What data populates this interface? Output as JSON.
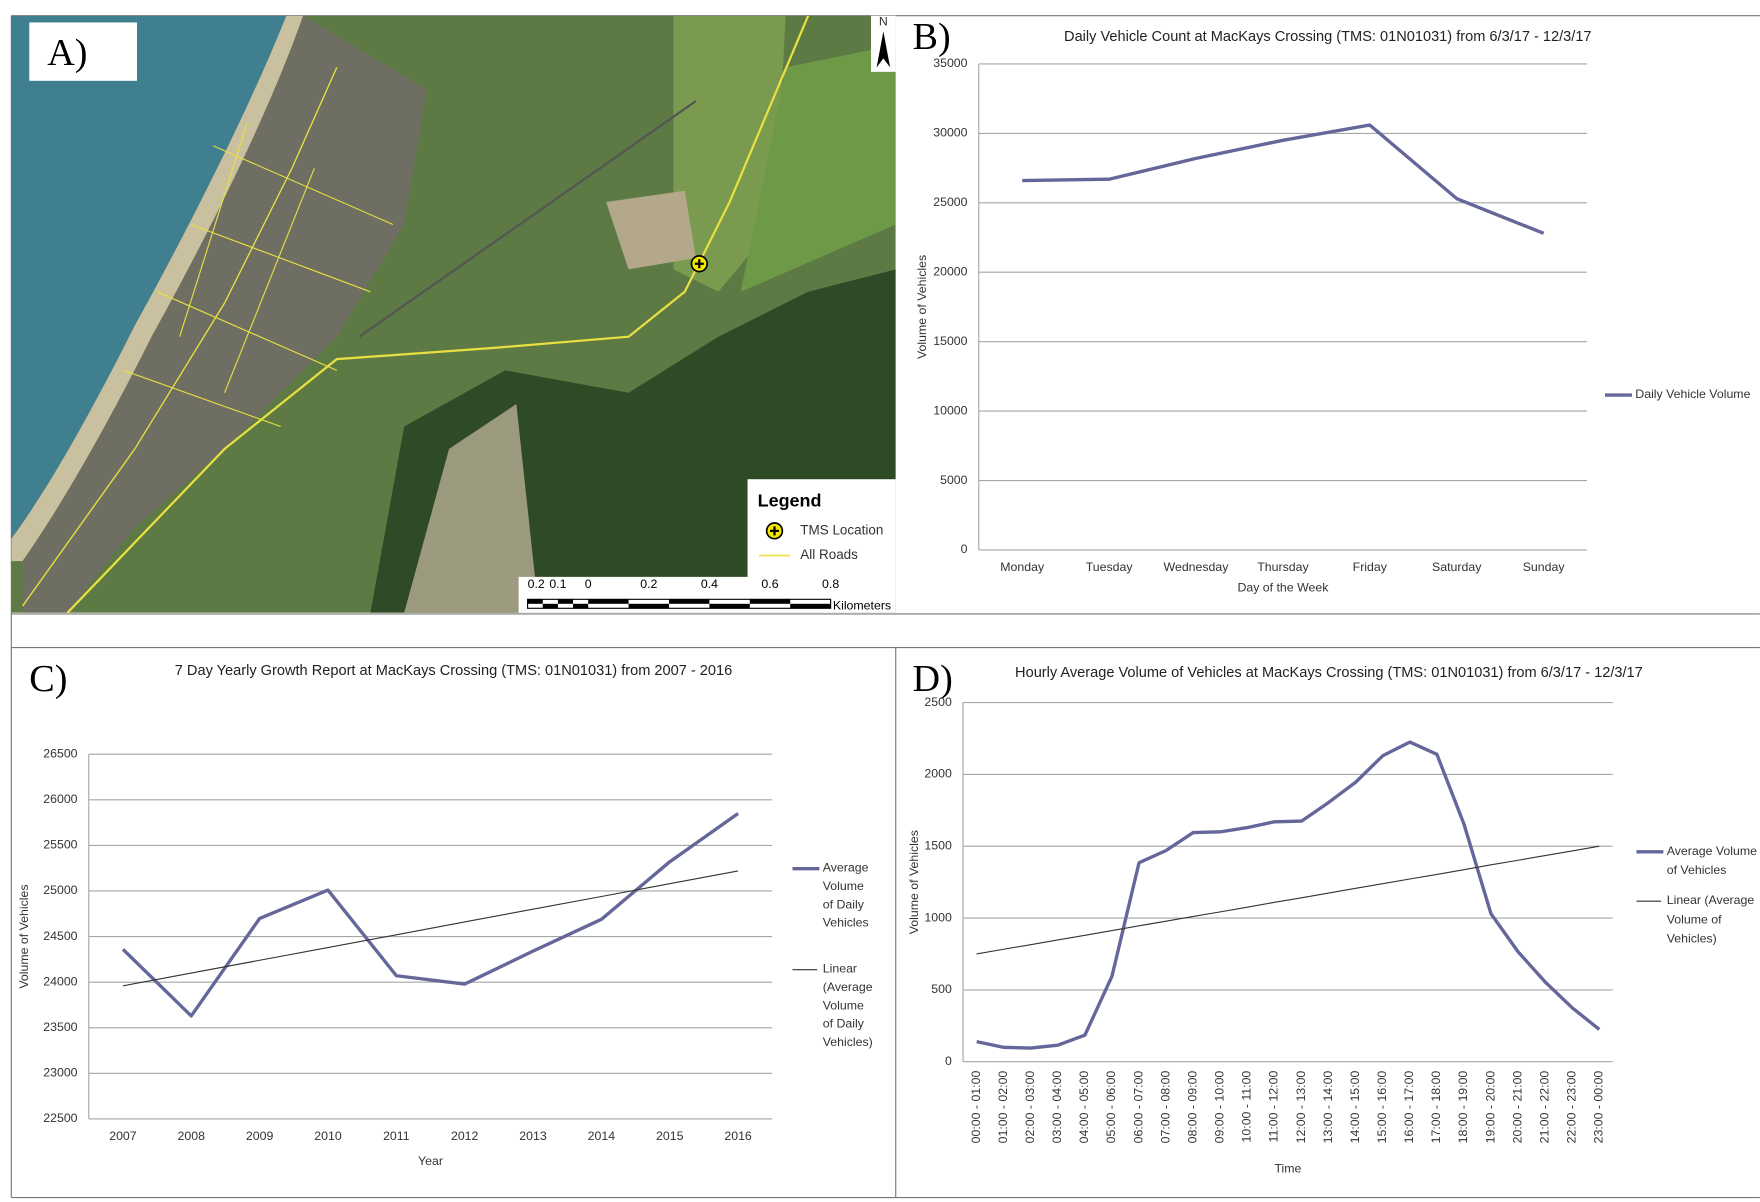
{
  "map": {
    "panel_label": "A)",
    "north": "N",
    "legend_title": "Legend",
    "legend_items": [
      "TMS Location",
      "All Roads"
    ],
    "scale_labels": [
      "0.2",
      "0.1",
      "0",
      "0.2",
      "0.4",
      "0.6",
      "0.8"
    ],
    "scale_unit": "Kilometers"
  },
  "chart_data": [
    {
      "type": "line",
      "panel_label": "B)",
      "title": "Daily Vehicle Count at MacKays Crossing (TMS: 01N01031) from 6/3/17 - 12/3/17",
      "x_label": "Day of the Week",
      "y_label": "Volume of Vehicles",
      "categories": [
        "Monday",
        "Tuesday",
        "Wednesday",
        "Thursday",
        "Friday",
        "Saturday",
        "Sunday"
      ],
      "series": [
        {
          "name": "Daily Vehicle Volume",
          "color": "#65679a",
          "values": [
            26600,
            26700,
            28200,
            29500,
            30600,
            25300,
            22800
          ]
        }
      ],
      "ylim": [
        0,
        35000
      ],
      "yticks": [
        0,
        5000,
        10000,
        15000,
        20000,
        25000,
        30000,
        35000
      ],
      "grid": true,
      "legend": "right"
    },
    {
      "type": "line",
      "panel_label": "C)",
      "title": "7 Day Yearly Growth Report at MacKays Crossing (TMS: 01N01031) from 2007 - 2016",
      "x_label": "Year",
      "y_label": "Volume of Vehicles",
      "categories": [
        2007,
        2008,
        2009,
        2010,
        2011,
        2012,
        2013,
        2014,
        2015,
        2016
      ],
      "series": [
        {
          "name": "Average Volume of Daily Vehicles",
          "color": "#65679a",
          "values": [
            24360,
            23630,
            24700,
            25010,
            24070,
            23980,
            24340,
            24690,
            25320,
            25850
          ]
        },
        {
          "name": "Linear (Average Volume of Daily Vehicles)",
          "color": "#333333",
          "values": [
            23960,
            24100,
            24240,
            24380,
            24520,
            24660,
            24800,
            24940,
            25080,
            25220
          ]
        }
      ],
      "ylim": [
        22500,
        26500
      ],
      "yticks": [
        22500,
        23000,
        23500,
        24000,
        24500,
        25000,
        25500,
        26000,
        26500
      ],
      "grid": true,
      "legend": "right"
    },
    {
      "type": "line",
      "panel_label": "D)",
      "title": "Hourly Average Volume of Vehicles at MacKays Crossing (TMS: 01N01031) from 6/3/17 - 12/3/17",
      "x_label": "Time",
      "y_label": "Volume of Vehicles",
      "categories": [
        "00:00 - 01:00",
        "01:00 - 02:00",
        "02:00 - 03:00",
        "03:00 - 04:00",
        "04:00 - 05:00",
        "05:00 - 06:00",
        "06:00 - 07:00",
        "07:00 - 08:00",
        "08:00 - 09:00",
        "09:00 - 10:00",
        "10:00 - 11:00",
        "11:00 - 12:00",
        "12:00 - 13:00",
        "13:00 - 14:00",
        "14:00 - 15:00",
        "15:00 - 16:00",
        "16:00 - 17:00",
        "17:00 - 18:00",
        "18:00 - 19:00",
        "19:00 - 20:00",
        "20:00 - 21:00",
        "21:00 - 22:00",
        "22:00 - 23:00",
        "23:00 - 00:00"
      ],
      "series": [
        {
          "name": "Average Volume of Vehicles",
          "color": "#65679a",
          "values": [
            140,
            100,
            95,
            115,
            185,
            595,
            1385,
            1470,
            1595,
            1600,
            1630,
            1670,
            1675,
            1805,
            1945,
            2130,
            2225,
            2140,
            1655,
            1030,
            765,
            555,
            375,
            225
          ]
        },
        {
          "name": "Linear (Average Volume of Vehicles)",
          "color": "#333333",
          "values": [
            750,
            783,
            815,
            848,
            880,
            913,
            946,
            978,
            1011,
            1043,
            1076,
            1109,
            1141,
            1174,
            1207,
            1239,
            1272,
            1304,
            1337,
            1370,
            1402,
            1435,
            1467,
            1500
          ]
        }
      ],
      "ylim": [
        0,
        2500
      ],
      "yticks": [
        0,
        500,
        1000,
        1500,
        2000,
        2500
      ],
      "grid": true,
      "legend": "right"
    }
  ]
}
